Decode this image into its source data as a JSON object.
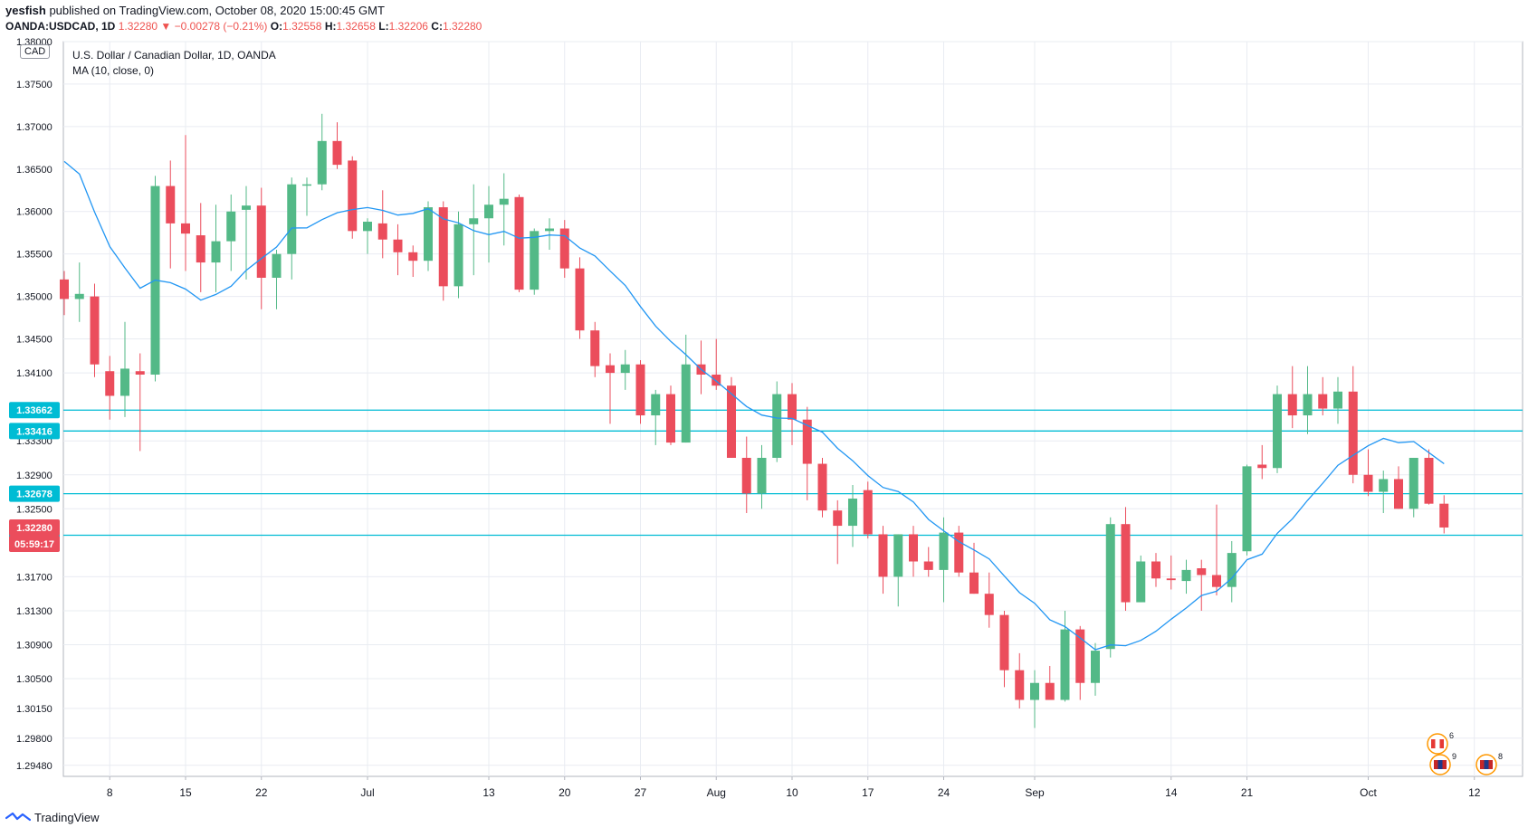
{
  "header": {
    "publisher": "yesfish",
    "published_text": "published on TradingView.com, October 08, 2020 15:00:45 GMT"
  },
  "ohlc": {
    "symbol": "OANDA:USDCAD, 1D",
    "last": "1.32280",
    "arrow": "▼",
    "change": "−0.00278 (−0.21%)",
    "o_label": "O:",
    "o": "1.32558",
    "h_label": "H:",
    "h": "1.32658",
    "l_label": "L:",
    "l": "1.32206",
    "c_label": "C:",
    "c": "1.32280"
  },
  "legend": {
    "title": "U.S. Dollar / Canadian Dollar, 1D, OANDA",
    "ma": "MA (10, close, 0)",
    "currency_tag": "CAD"
  },
  "footer": {
    "brand": "TradingView"
  },
  "colors": {
    "up": "#53b987",
    "down": "#eb4d5c",
    "ma": "#2196f3",
    "hline": "#00bcd4",
    "grid": "#e9ecf2"
  },
  "chart_data": {
    "type": "candlestick",
    "title": "U.S. Dollar / Canadian Dollar, 1D, OANDA",
    "ylim": [
      1.2935,
      1.38
    ],
    "y_ticks": [
      "1.38000",
      "1.37500",
      "1.37000",
      "1.36500",
      "1.36000",
      "1.35500",
      "1.35000",
      "1.34500",
      "1.34100",
      "1.33300",
      "1.32900",
      "1.32500",
      "1.31700",
      "1.31300",
      "1.30900",
      "1.30500",
      "1.30150",
      "1.29800",
      "1.29480"
    ],
    "x_ticks": [
      {
        "label": "8",
        "index": 3
      },
      {
        "label": "15",
        "index": 8
      },
      {
        "label": "22",
        "index": 13
      },
      {
        "label": "Jul",
        "index": 20
      },
      {
        "label": "13",
        "index": 28
      },
      {
        "label": "20",
        "index": 33
      },
      {
        "label": "27",
        "index": 38
      },
      {
        "label": "Aug",
        "index": 43
      },
      {
        "label": "10",
        "index": 48
      },
      {
        "label": "17",
        "index": 53
      },
      {
        "label": "24",
        "index": 58
      },
      {
        "label": "Sep",
        "index": 64
      },
      {
        "label": "14",
        "index": 73
      },
      {
        "label": "21",
        "index": 78
      },
      {
        "label": "Oct",
        "index": 86
      },
      {
        "label": "12",
        "index": 93
      }
    ],
    "horizontal_lines": [
      {
        "value": 1.33662,
        "label": "1.33662"
      },
      {
        "value": 1.33416,
        "label": "1.33416"
      },
      {
        "value": 1.32678,
        "label": "1.32678"
      },
      {
        "value": 1.32189,
        "label": "1.32189"
      }
    ],
    "price_marker": {
      "value": 1.3228,
      "label": "1.32280",
      "countdown": "05:59:17"
    },
    "ma_name": "MA (10, close, 0)",
    "candles": [
      [
        1.352,
        1.353,
        1.3478,
        1.3497
      ],
      [
        1.3497,
        1.354,
        1.347,
        1.3503
      ],
      [
        1.35,
        1.3515,
        1.3405,
        1.342
      ],
      [
        1.3412,
        1.343,
        1.3355,
        1.3383
      ],
      [
        1.3383,
        1.347,
        1.3358,
        1.3415
      ],
      [
        1.3412,
        1.3433,
        1.3318,
        1.3408
      ],
      [
        1.3408,
        1.3642,
        1.34,
        1.363
      ],
      [
        1.363,
        1.366,
        1.3533,
        1.3586
      ],
      [
        1.3586,
        1.369,
        1.353,
        1.3574
      ],
      [
        1.3572,
        1.361,
        1.3505,
        1.354
      ],
      [
        1.354,
        1.3608,
        1.3505,
        1.3565
      ],
      [
        1.3565,
        1.362,
        1.353,
        1.36
      ],
      [
        1.3602,
        1.363,
        1.352,
        1.3607
      ],
      [
        1.3607,
        1.3628,
        1.3485,
        1.3522
      ],
      [
        1.3522,
        1.3555,
        1.3485,
        1.355
      ],
      [
        1.355,
        1.364,
        1.352,
        1.3632
      ],
      [
        1.3632,
        1.364,
        1.3595,
        1.3632
      ],
      [
        1.3632,
        1.3715,
        1.3625,
        1.3683
      ],
      [
        1.3683,
        1.3705,
        1.365,
        1.3655
      ],
      [
        1.366,
        1.3665,
        1.3568,
        1.3577
      ],
      [
        1.3577,
        1.3592,
        1.355,
        1.3588
      ],
      [
        1.3586,
        1.3625,
        1.3545,
        1.3567
      ],
      [
        1.3567,
        1.3585,
        1.3525,
        1.3552
      ],
      [
        1.3552,
        1.356,
        1.3523,
        1.3542
      ],
      [
        1.3542,
        1.3612,
        1.353,
        1.3605
      ],
      [
        1.3605,
        1.3612,
        1.3495,
        1.3512
      ],
      [
        1.3512,
        1.36,
        1.3498,
        1.3585
      ],
      [
        1.3585,
        1.3632,
        1.3525,
        1.3592
      ],
      [
        1.3592,
        1.363,
        1.354,
        1.3608
      ],
      [
        1.3608,
        1.3645,
        1.356,
        1.3615
      ],
      [
        1.3617,
        1.362,
        1.3505,
        1.3508
      ],
      [
        1.3508,
        1.358,
        1.3502,
        1.3577
      ],
      [
        1.3577,
        1.3592,
        1.3555,
        1.358
      ],
      [
        1.358,
        1.359,
        1.3522,
        1.3533
      ],
      [
        1.3533,
        1.3546,
        1.345,
        1.346
      ],
      [
        1.346,
        1.347,
        1.3405,
        1.3418
      ],
      [
        1.3419,
        1.3433,
        1.335,
        1.341
      ],
      [
        1.341,
        1.3437,
        1.339,
        1.342
      ],
      [
        1.342,
        1.3425,
        1.335,
        1.336
      ],
      [
        1.336,
        1.339,
        1.3325,
        1.3385
      ],
      [
        1.3385,
        1.3395,
        1.3325,
        1.3328
      ],
      [
        1.3328,
        1.3455,
        1.3328,
        1.342
      ],
      [
        1.342,
        1.3448,
        1.3385,
        1.3408
      ],
      [
        1.3408,
        1.345,
        1.339,
        1.3395
      ],
      [
        1.3395,
        1.3405,
        1.331,
        1.331
      ],
      [
        1.331,
        1.3335,
        1.3245,
        1.3268
      ],
      [
        1.3268,
        1.3325,
        1.325,
        1.331
      ],
      [
        1.331,
        1.34,
        1.3305,
        1.3385
      ],
      [
        1.3385,
        1.3398,
        1.3325,
        1.3355
      ],
      [
        1.3355,
        1.337,
        1.326,
        1.3303
      ],
      [
        1.3303,
        1.331,
        1.324,
        1.3248
      ],
      [
        1.3248,
        1.326,
        1.3185,
        1.323
      ],
      [
        1.323,
        1.3278,
        1.3205,
        1.3262
      ],
      [
        1.3272,
        1.3282,
        1.3215,
        1.322
      ],
      [
        1.322,
        1.323,
        1.315,
        1.317
      ],
      [
        1.317,
        1.322,
        1.3135,
        1.322
      ],
      [
        1.322,
        1.323,
        1.317,
        1.3188
      ],
      [
        1.3188,
        1.3205,
        1.317,
        1.3178
      ],
      [
        1.3178,
        1.324,
        1.314,
        1.3222
      ],
      [
        1.3222,
        1.323,
        1.317,
        1.3175
      ],
      [
        1.3175,
        1.321,
        1.315,
        1.315
      ],
      [
        1.315,
        1.3175,
        1.311,
        1.3125
      ],
      [
        1.3125,
        1.313,
        1.304,
        1.306
      ],
      [
        1.306,
        1.308,
        1.3015,
        1.3025
      ],
      [
        1.3025,
        1.306,
        1.2992,
        1.3045
      ],
      [
        1.3045,
        1.3065,
        1.3025,
        1.3025
      ],
      [
        1.3025,
        1.313,
        1.3023,
        1.3108
      ],
      [
        1.3108,
        1.3112,
        1.3025,
        1.3045
      ],
      [
        1.3045,
        1.3092,
        1.303,
        1.3083
      ],
      [
        1.3085,
        1.324,
        1.3075,
        1.3232
      ],
      [
        1.3232,
        1.3252,
        1.313,
        1.314
      ],
      [
        1.314,
        1.3195,
        1.314,
        1.3188
      ],
      [
        1.3188,
        1.3198,
        1.3158,
        1.3168
      ],
      [
        1.3168,
        1.3195,
        1.3155,
        1.3166
      ],
      [
        1.3165,
        1.319,
        1.315,
        1.3178
      ],
      [
        1.318,
        1.319,
        1.313,
        1.3172
      ],
      [
        1.3172,
        1.3255,
        1.3148,
        1.3158
      ],
      [
        1.3158,
        1.3212,
        1.314,
        1.3198
      ],
      [
        1.32,
        1.3302,
        1.3195,
        1.33
      ],
      [
        1.3302,
        1.3325,
        1.3285,
        1.3298
      ],
      [
        1.3298,
        1.3395,
        1.3292,
        1.3385
      ],
      [
        1.3385,
        1.3418,
        1.3345,
        1.336
      ],
      [
        1.336,
        1.3418,
        1.3338,
        1.3385
      ],
      [
        1.3385,
        1.3405,
        1.336,
        1.3368
      ],
      [
        1.3368,
        1.3405,
        1.335,
        1.3388
      ],
      [
        1.3388,
        1.3418,
        1.328,
        1.329
      ],
      [
        1.329,
        1.332,
        1.3265,
        1.327
      ],
      [
        1.327,
        1.3295,
        1.3245,
        1.3285
      ],
      [
        1.3285,
        1.33,
        1.325,
        1.325
      ],
      [
        1.325,
        1.331,
        1.324,
        1.331
      ],
      [
        1.331,
        1.332,
        1.3255,
        1.3256
      ],
      [
        1.3256,
        1.3266,
        1.3221,
        1.3228
      ]
    ]
  }
}
